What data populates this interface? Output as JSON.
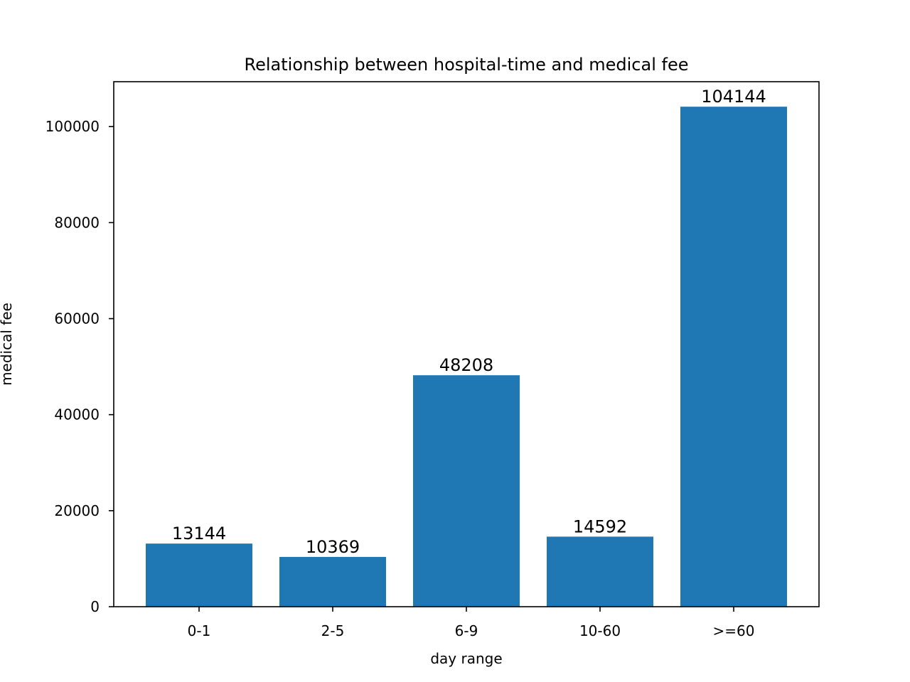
{
  "chart_data": {
    "type": "bar",
    "title": "Relationship between hospital-time and medical fee",
    "xlabel": "day range",
    "ylabel": "medical fee",
    "categories": [
      "0-1",
      "2-5",
      "6-9",
      "10-60",
      ">=60"
    ],
    "values": [
      13144,
      10369,
      48208,
      14592,
      104144
    ],
    "data_labels": [
      "13144",
      "10369",
      "48208",
      "14592",
      "104144"
    ],
    "ylim": [
      0,
      109351
    ],
    "yticks": [
      0,
      20000,
      40000,
      60000,
      80000,
      100000
    ],
    "ytick_labels": [
      "0",
      "20000",
      "40000",
      "60000",
      "80000",
      "100000"
    ],
    "grid": false,
    "bar_color": "#1f77b4"
  }
}
